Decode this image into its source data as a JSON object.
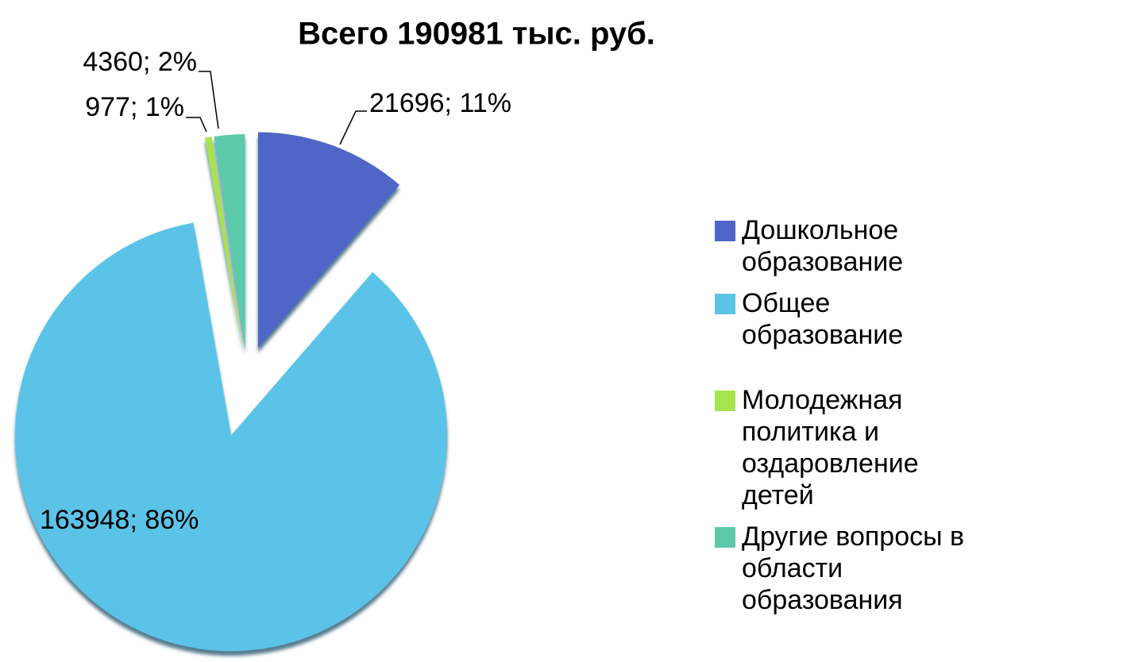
{
  "chart_data": {
    "type": "pie",
    "title": "Всего 190981 тыс. руб.",
    "categories": [
      "Дошкольное образование",
      "Общее образование",
      "Молодежная политика и оздаровление детей",
      "Другие вопросы в области образования"
    ],
    "values": [
      21696,
      163948,
      977,
      4360
    ],
    "value_labels": [
      "21696; 11%",
      "163948; 86%",
      "977; 1%",
      "4360; 2%"
    ],
    "colors": [
      "#4f66c8",
      "#5bc3e8",
      "#a6e34f",
      "#5ccaa8"
    ],
    "legend": "right"
  }
}
